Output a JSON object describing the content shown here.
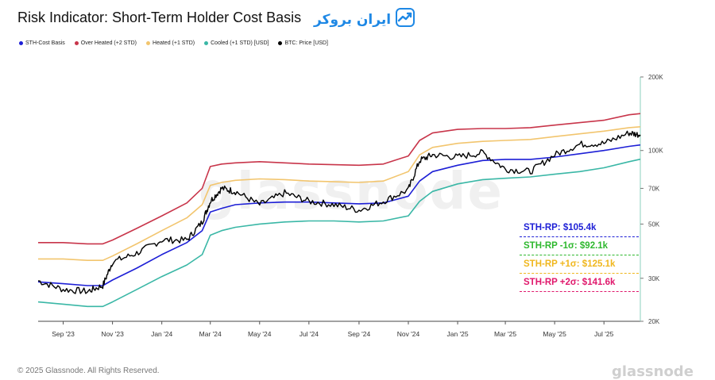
{
  "title": "Risk Indicator: Short-Term Holder Cost Basis",
  "logo": {
    "text": "ایران بروکر",
    "icon": "chart-trend-icon"
  },
  "watermark": "glassnode",
  "footer": {
    "copyright": "© 2025 Glassnode. All Rights Reserved.",
    "brand": "glassnode"
  },
  "legend": [
    {
      "label": "STH-Cost Basis",
      "color": "#1d1fd6"
    },
    {
      "label": "Over Heated (+2 STD)",
      "color": "#c8354a"
    },
    {
      "label": "Heated (+1 STD)",
      "color": "#f2c56e"
    },
    {
      "label": "Cooled (+1 STD) [USD]",
      "color": "#3ab7a6"
    },
    {
      "label": "BTC: Price [USD]",
      "color": "#000000"
    }
  ],
  "callouts": [
    {
      "text": "STH-RP: $105.4k",
      "color": "#1d1fd6"
    },
    {
      "text": "STH-RP -1σ: $92.1k",
      "color": "#2eb82e"
    },
    {
      "text": "STH-RP +1σ: $125.1k",
      "color": "#f0b71e"
    },
    {
      "text": "STH-RP +2σ: $141.6k",
      "color": "#e0186c"
    }
  ],
  "chart_data": {
    "type": "line",
    "y_scale": "log",
    "ylim": [
      20000,
      200000
    ],
    "y_ticks": [
      {
        "label": "200K",
        "value": 200000
      },
      {
        "label": "100K",
        "value": 100000
      },
      {
        "label": "70K",
        "value": 70000
      },
      {
        "label": "50K",
        "value": 50000
      },
      {
        "label": "30K",
        "value": 30000
      },
      {
        "label": "20K",
        "value": 20000
      }
    ],
    "xlim": [
      "2023-08-01",
      "2025-08-15"
    ],
    "x_ticks": [
      {
        "label": "Sep '23",
        "date": "2023-09-01"
      },
      {
        "label": "Nov '23",
        "date": "2023-11-01"
      },
      {
        "label": "Jan '24",
        "date": "2024-01-01"
      },
      {
        "label": "Mar '24",
        "date": "2024-03-01"
      },
      {
        "label": "May '24",
        "date": "2024-05-01"
      },
      {
        "label": "Jul '24",
        "date": "2024-07-01"
      },
      {
        "label": "Sep '24",
        "date": "2024-09-01"
      },
      {
        "label": "Nov '24",
        "date": "2024-11-01"
      },
      {
        "label": "Jan '25",
        "date": "2025-01-01"
      },
      {
        "label": "Mar '25",
        "date": "2025-03-01"
      },
      {
        "label": "May '25",
        "date": "2025-05-01"
      },
      {
        "label": "Jul '25",
        "date": "2025-07-01"
      }
    ],
    "x": [
      "2023-08-01",
      "2023-09-01",
      "2023-10-01",
      "2023-10-20",
      "2023-11-01",
      "2023-12-01",
      "2024-01-01",
      "2024-02-01",
      "2024-02-20",
      "2024-03-01",
      "2024-03-15",
      "2024-04-01",
      "2024-05-01",
      "2024-06-01",
      "2024-07-01",
      "2024-08-01",
      "2024-09-01",
      "2024-10-01",
      "2024-11-01",
      "2024-11-15",
      "2024-12-01",
      "2025-01-01",
      "2025-02-01",
      "2025-03-01",
      "2025-04-01",
      "2025-05-01",
      "2025-06-01",
      "2025-07-01",
      "2025-08-01",
      "2025-08-15"
    ],
    "series": [
      {
        "name": "Over Heated (+2 STD)",
        "color": "#c8354a",
        "values": [
          42000,
          42000,
          41500,
          41500,
          43000,
          48000,
          54000,
          61000,
          70000,
          86000,
          88000,
          89000,
          90000,
          89000,
          88000,
          87500,
          87000,
          88000,
          95000,
          110000,
          118000,
          122000,
          123000,
          123000,
          124000,
          127000,
          130000,
          133000,
          140000,
          141600
        ]
      },
      {
        "name": "Heated (+1 STD)",
        "color": "#f2c56e",
        "values": [
          36000,
          36000,
          35500,
          35500,
          37000,
          41500,
          47000,
          53000,
          60000,
          72000,
          74000,
          75500,
          76500,
          76000,
          75000,
          74500,
          74000,
          75000,
          82000,
          96000,
          103000,
          107000,
          109000,
          110000,
          111000,
          114000,
          117000,
          120000,
          124000,
          125100
        ]
      },
      {
        "name": "STH-Cost Basis",
        "color": "#1d1fd6",
        "values": [
          29000,
          28500,
          28000,
          28000,
          29500,
          33000,
          37500,
          42000,
          47000,
          56000,
          58000,
          60000,
          61000,
          61500,
          61500,
          61000,
          60500,
          61000,
          65000,
          75000,
          82000,
          87000,
          91000,
          92000,
          92000,
          94000,
          97000,
          100000,
          104000,
          105400
        ]
      },
      {
        "name": "Cooled (+1 STD) [USD]",
        "color": "#3ab7a6",
        "values": [
          24000,
          23500,
          23000,
          23000,
          24000,
          27000,
          30500,
          34000,
          37500,
          45000,
          47000,
          48500,
          50000,
          51000,
          51500,
          51500,
          51000,
          51500,
          54000,
          62000,
          68000,
          73000,
          76000,
          77000,
          78000,
          80000,
          82000,
          85000,
          90000,
          92100
        ]
      },
      {
        "name": "BTC: Price [USD]",
        "color": "#000000",
        "values": [
          29300,
          27000,
          26500,
          28000,
          35000,
          38000,
          43000,
          43000,
          51000,
          62000,
          70000,
          68000,
          60000,
          67000,
          62000,
          60000,
          57000,
          62000,
          69000,
          91000,
          96000,
          94000,
          98000,
          84000,
          82000,
          96000,
          106000,
          107000,
          118000,
          116000
        ]
      }
    ]
  }
}
